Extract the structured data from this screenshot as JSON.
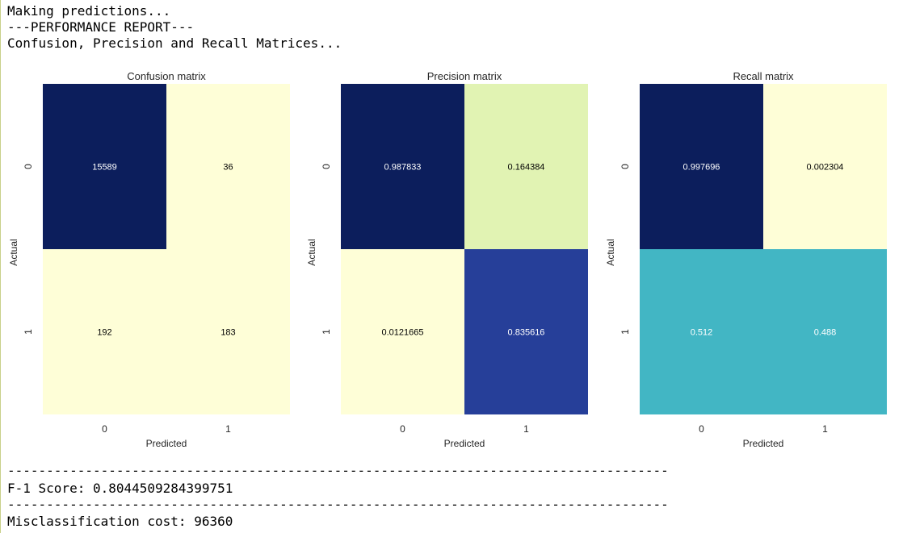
{
  "console": {
    "line1": "Making predictions...",
    "line2": "---PERFORMANCE REPORT---",
    "line3": "Confusion, Precision and Recall Matrices...",
    "separator1": "-------------------------------------------------------------------------------------",
    "f1_line": "F-1 Score: 0.8044509284399751",
    "separator2": "-------------------------------------------------------------------------------------",
    "cost_line": "Misclassification cost: 96360"
  },
  "chart_data": [
    {
      "type": "heatmap",
      "title": "Confusion matrix",
      "xlabel": "Predicted",
      "ylabel": "Actual",
      "x_categories": [
        "0",
        "1"
      ],
      "y_categories": [
        "0",
        "1"
      ],
      "values": [
        [
          "15589",
          "36"
        ],
        [
          "192",
          "183"
        ]
      ],
      "colors": [
        [
          "#0c1e5c",
          "#fefed7"
        ],
        [
          "#fefed7",
          "#fefed7"
        ]
      ],
      "text_colors": [
        [
          "#ffffff",
          "#000000"
        ],
        [
          "#000000",
          "#000000"
        ]
      ],
      "colorbar": false
    },
    {
      "type": "heatmap",
      "title": "Precision matrix",
      "xlabel": "Predicted",
      "ylabel": "Actual",
      "x_categories": [
        "0",
        "1"
      ],
      "y_categories": [
        "0",
        "1"
      ],
      "values": [
        [
          "0.987833",
          "0.164384"
        ],
        [
          "0.0121665",
          "0.835616"
        ]
      ],
      "colors": [
        [
          "#0c1e5c",
          "#e1f3b3"
        ],
        [
          "#fefed7",
          "#263f99"
        ]
      ],
      "text_colors": [
        [
          "#ffffff",
          "#000000"
        ],
        [
          "#000000",
          "#ffffff"
        ]
      ],
      "colorbar": false
    },
    {
      "type": "heatmap",
      "title": "Recall matrix",
      "xlabel": "Predicted",
      "ylabel": "Actual",
      "x_categories": [
        "0",
        "1"
      ],
      "y_categories": [
        "0",
        "1"
      ],
      "values": [
        [
          "0.997696",
          "0.002304"
        ],
        [
          "0.512",
          "0.488"
        ]
      ],
      "colors": [
        [
          "#0c1e5c",
          "#fefed7"
        ],
        [
          "#42b6c4",
          "#42b6c4"
        ]
      ],
      "text_colors": [
        [
          "#ffffff",
          "#000000"
        ],
        [
          "#ffffff",
          "#ffffff"
        ]
      ],
      "colorbar": false
    }
  ]
}
